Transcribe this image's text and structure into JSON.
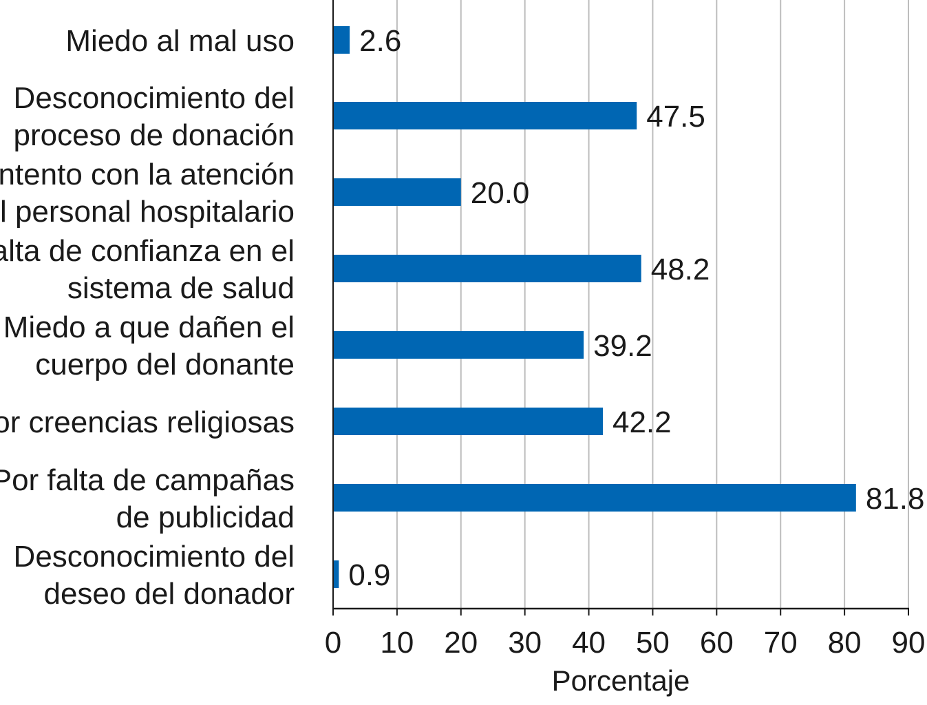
{
  "chart_data": {
    "type": "bar",
    "orientation": "horizontal",
    "title": "",
    "categories": [
      [
        "Miedo al mal uso"
      ],
      [
        "Desconocimiento del",
        "proceso de donación"
      ],
      [
        "Descontento con la atención",
        "del personal hospitalario"
      ],
      [
        "Falta de confianza en el",
        "sistema de salud"
      ],
      [
        "Miedo a que dañen el",
        "cuerpo del donante"
      ],
      [
        "Por creencias religiosas"
      ],
      [
        "Por falta de campañas",
        "de publicidad"
      ],
      [
        "Desconocimiento del",
        "deseo del donador"
      ]
    ],
    "values": [
      2.6,
      47.5,
      20.0,
      48.2,
      39.2,
      42.2,
      81.8,
      0.9
    ],
    "value_labels": [
      "2.6",
      "47.5",
      "20.0",
      "48.2",
      "39.2",
      "42.2",
      "81.8",
      "0.9"
    ],
    "xlabel": "Porcentaje",
    "ylabel": "",
    "xlim": [
      0,
      90
    ],
    "xticks": [
      0,
      10,
      20,
      30,
      40,
      50,
      60,
      70,
      80,
      90
    ],
    "grid": true,
    "colors": {
      "bar": "#0066b3",
      "grid": "#bdbdbd",
      "axis": "#1a1a1a"
    }
  }
}
